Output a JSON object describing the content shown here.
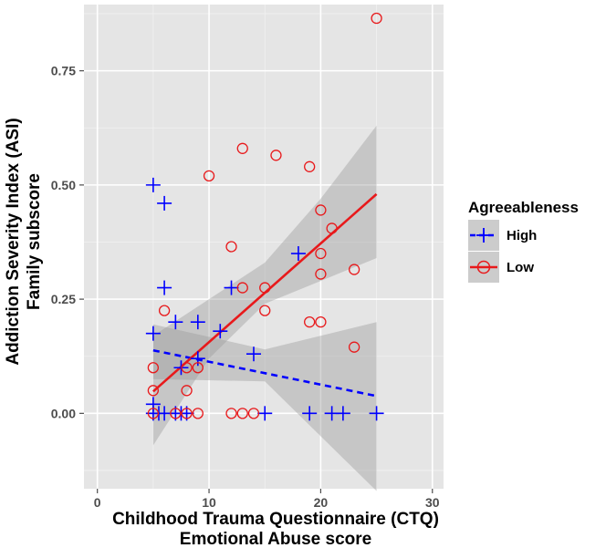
{
  "chart_data": {
    "type": "scatter",
    "xlabel_line1": "Childhood Trauma Questionnaire (CTQ)",
    "xlabel_line2": "Emotional Abuse score",
    "ylabel_line1": "Addiction Severity Index (ASI)",
    "ylabel_line2": "Family subscore",
    "xlim": [
      -1.2,
      31
    ],
    "ylim": [
      -0.165,
      0.895
    ],
    "x_ticks": [
      0,
      10,
      20,
      30
    ],
    "y_ticks": [
      0.0,
      0.25,
      0.5,
      0.75
    ],
    "x_tick_labels": [
      "0",
      "10",
      "20",
      "30"
    ],
    "y_tick_labels": [
      "0.00",
      "0.25",
      "0.50",
      "0.75"
    ],
    "grid": true,
    "legend": {
      "title": "Agreeableness",
      "position": "right",
      "entries": [
        {
          "label": "High",
          "color": "#0000ff",
          "marker": "plus",
          "line": "dashed"
        },
        {
          "label": "Low",
          "color": "#e8191b",
          "marker": "circle",
          "line": "solid"
        }
      ]
    },
    "series": [
      {
        "name": "High",
        "color": "#0000ff",
        "marker": "plus",
        "points": [
          [
            5,
            0.5
          ],
          [
            6,
            0.46
          ],
          [
            6,
            0.275
          ],
          [
            5,
            0.175
          ],
          [
            7,
            0.2
          ],
          [
            9,
            0.2
          ],
          [
            5,
            0.02
          ],
          [
            5,
            0.0
          ],
          [
            5.5,
            0.0
          ],
          [
            6,
            0.0
          ],
          [
            7,
            0.0
          ],
          [
            7.5,
            0.0
          ],
          [
            8,
            0.0
          ],
          [
            7.5,
            0.1
          ],
          [
            9,
            0.12
          ],
          [
            11,
            0.18
          ],
          [
            12,
            0.275
          ],
          [
            14,
            0.13
          ],
          [
            18,
            0.35
          ],
          [
            15,
            0.0
          ],
          [
            19,
            0.0
          ],
          [
            21,
            0.0
          ],
          [
            22,
            0.0
          ],
          [
            25,
            0.0
          ]
        ],
        "fit": {
          "x": [
            5,
            25
          ],
          "y": [
            0.138,
            0.038
          ]
        },
        "ci_band": {
          "x": [
            5,
            15,
            25
          ],
          "lower": [
            0.075,
            0.07,
            -0.17
          ],
          "upper": [
            0.195,
            0.14,
            0.2
          ]
        }
      },
      {
        "name": "Low",
        "color": "#e8191b",
        "marker": "circle",
        "points": [
          [
            25,
            0.865
          ],
          [
            13,
            0.58
          ],
          [
            16,
            0.565
          ],
          [
            19,
            0.54
          ],
          [
            10,
            0.52
          ],
          [
            12,
            0.365
          ],
          [
            20,
            0.445
          ],
          [
            21,
            0.405
          ],
          [
            20,
            0.35
          ],
          [
            13,
            0.275
          ],
          [
            15,
            0.275
          ],
          [
            20,
            0.305
          ],
          [
            23,
            0.315
          ],
          [
            6,
            0.225
          ],
          [
            15,
            0.225
          ],
          [
            19,
            0.2
          ],
          [
            20,
            0.2
          ],
          [
            23,
            0.145
          ],
          [
            5,
            0.1
          ],
          [
            8,
            0.1
          ],
          [
            9,
            0.1
          ],
          [
            5,
            0.05
          ],
          [
            8,
            0.05
          ],
          [
            5,
            0.0
          ],
          [
            7,
            0.0
          ],
          [
            8,
            0.0
          ],
          [
            9,
            0.0
          ],
          [
            12,
            0.0
          ],
          [
            13,
            0.0
          ],
          [
            14,
            0.0
          ]
        ],
        "fit": {
          "x": [
            5,
            25
          ],
          "y": [
            0.048,
            0.48
          ]
        },
        "ci_band": {
          "x": [
            5,
            10,
            15,
            20,
            25
          ],
          "lower": [
            -0.07,
            0.12,
            0.24,
            0.29,
            0.34
          ],
          "upper": [
            0.17,
            0.25,
            0.33,
            0.47,
            0.63
          ]
        }
      }
    ]
  }
}
